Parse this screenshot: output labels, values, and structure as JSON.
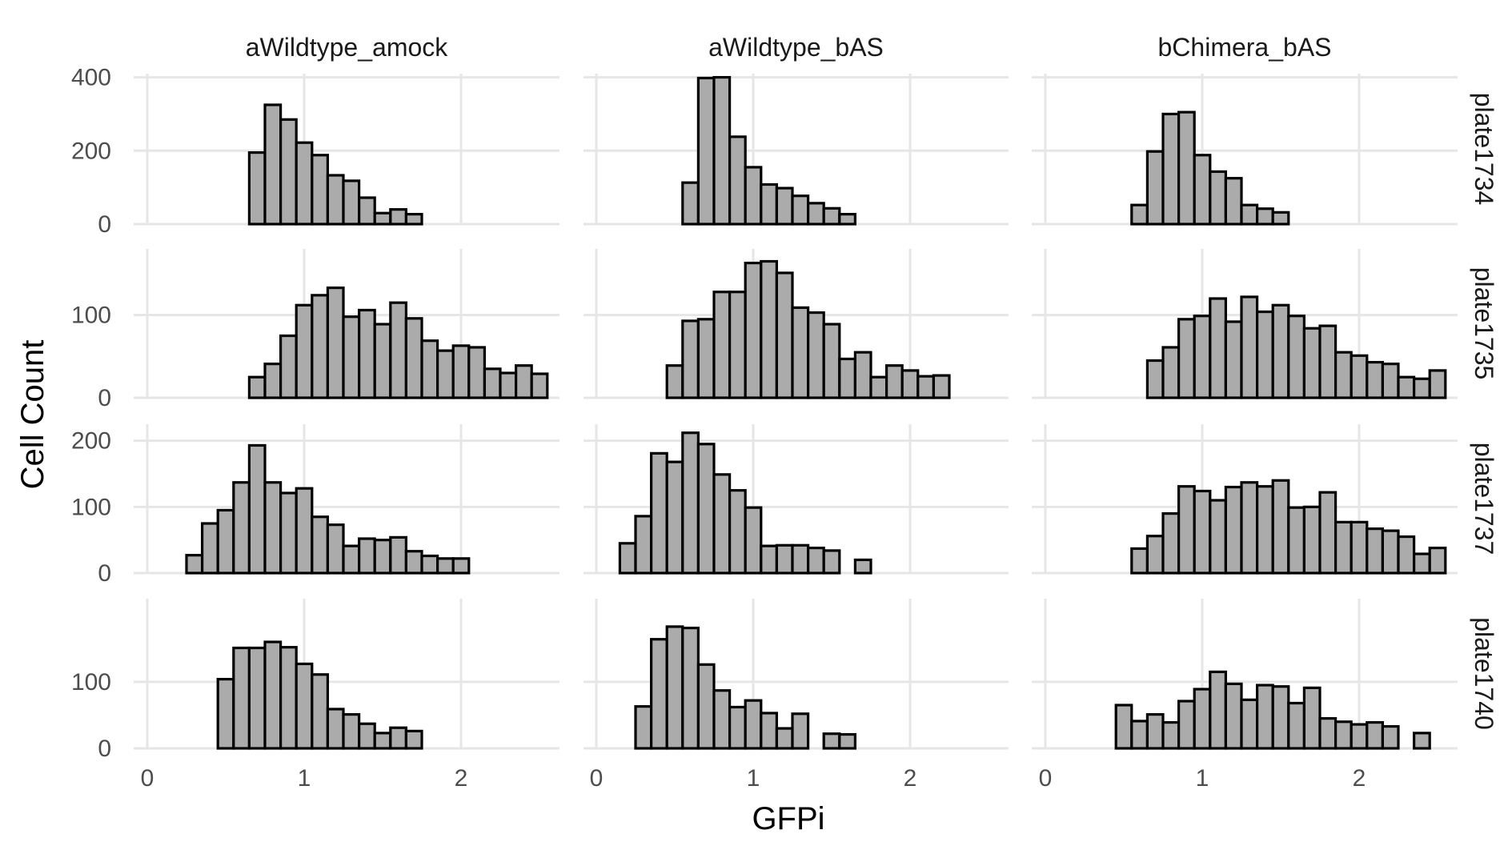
{
  "chart_data": {
    "type": "bar",
    "subtype": "faceted-histogram",
    "xlabel": "GFPi",
    "ylabel": "Cell Count",
    "bin_width": 0.1,
    "xlim": [
      -0.05,
      2.6
    ],
    "x_ticks": [
      0,
      1,
      2
    ],
    "grid": true,
    "facet_columns": [
      "aWildtype_amock",
      "aWildtype_bAS",
      "bChimera_bAS"
    ],
    "facet_rows": [
      {
        "label": "plate1734",
        "ylim": [
          0,
          410
        ],
        "y_ticks": [
          0,
          200,
          400
        ]
      },
      {
        "label": "plate1735",
        "ylim": [
          0,
          180
        ],
        "y_ticks": [
          0,
          100
        ]
      },
      {
        "label": "plate1737",
        "ylim": [
          0,
          225
        ],
        "y_ticks": [
          0,
          100,
          200
        ]
      },
      {
        "label": "plate1740",
        "ylim": [
          0,
          225
        ],
        "y_ticks": [
          0,
          100
        ]
      }
    ],
    "panels": [
      {
        "row": 0,
        "col": 0,
        "bins": [
          [
            0.7,
            195
          ],
          [
            0.8,
            325
          ],
          [
            0.9,
            285
          ],
          [
            1.0,
            222
          ],
          [
            1.1,
            188
          ],
          [
            1.2,
            133
          ],
          [
            1.3,
            118
          ],
          [
            1.4,
            72
          ],
          [
            1.5,
            30
          ],
          [
            1.6,
            40
          ],
          [
            1.7,
            27
          ]
        ]
      },
      {
        "row": 0,
        "col": 1,
        "bins": [
          [
            0.6,
            113
          ],
          [
            0.7,
            398
          ],
          [
            0.8,
            400
          ],
          [
            0.9,
            238
          ],
          [
            1.0,
            155
          ],
          [
            1.1,
            108
          ],
          [
            1.2,
            98
          ],
          [
            1.3,
            77
          ],
          [
            1.4,
            57
          ],
          [
            1.5,
            43
          ],
          [
            1.6,
            27
          ]
        ]
      },
      {
        "row": 0,
        "col": 2,
        "bins": [
          [
            0.6,
            52
          ],
          [
            0.7,
            198
          ],
          [
            0.8,
            300
          ],
          [
            0.9,
            305
          ],
          [
            1.0,
            188
          ],
          [
            1.1,
            143
          ],
          [
            1.2,
            125
          ],
          [
            1.3,
            52
          ],
          [
            1.4,
            42
          ],
          [
            1.5,
            32
          ]
        ]
      },
      {
        "row": 1,
        "col": 0,
        "bins": [
          [
            0.7,
            25
          ],
          [
            0.8,
            41
          ],
          [
            0.9,
            75
          ],
          [
            1.0,
            112
          ],
          [
            1.1,
            124
          ],
          [
            1.2,
            133
          ],
          [
            1.3,
            98
          ],
          [
            1.4,
            106
          ],
          [
            1.5,
            89
          ],
          [
            1.6,
            115
          ],
          [
            1.7,
            96
          ],
          [
            1.8,
            69
          ],
          [
            1.9,
            57
          ],
          [
            2.0,
            63
          ],
          [
            2.1,
            61
          ],
          [
            2.2,
            35
          ],
          [
            2.3,
            30
          ],
          [
            2.4,
            39
          ],
          [
            2.5,
            29
          ]
        ]
      },
      {
        "row": 1,
        "col": 1,
        "bins": [
          [
            0.5,
            39
          ],
          [
            0.6,
            93
          ],
          [
            0.7,
            95
          ],
          [
            0.8,
            128
          ],
          [
            0.9,
            128
          ],
          [
            1.0,
            163
          ],
          [
            1.1,
            165
          ],
          [
            1.2,
            151
          ],
          [
            1.3,
            109
          ],
          [
            1.4,
            103
          ],
          [
            1.5,
            89
          ],
          [
            1.6,
            47
          ],
          [
            1.7,
            55
          ],
          [
            1.8,
            25
          ],
          [
            1.9,
            39
          ],
          [
            2.0,
            33
          ],
          [
            2.1,
            26
          ],
          [
            2.2,
            27
          ]
        ]
      },
      {
        "row": 1,
        "col": 2,
        "bins": [
          [
            0.7,
            45
          ],
          [
            0.8,
            61
          ],
          [
            0.9,
            95
          ],
          [
            1.0,
            99
          ],
          [
            1.1,
            120
          ],
          [
            1.2,
            92
          ],
          [
            1.3,
            122
          ],
          [
            1.4,
            104
          ],
          [
            1.5,
            112
          ],
          [
            1.6,
            99
          ],
          [
            1.7,
            84
          ],
          [
            1.8,
            87
          ],
          [
            1.9,
            55
          ],
          [
            2.0,
            51
          ],
          [
            2.1,
            43
          ],
          [
            2.2,
            41
          ],
          [
            2.3,
            25
          ],
          [
            2.4,
            23
          ],
          [
            2.5,
            33
          ]
        ]
      },
      {
        "row": 2,
        "col": 0,
        "bins": [
          [
            0.3,
            27
          ],
          [
            0.4,
            75
          ],
          [
            0.5,
            95
          ],
          [
            0.6,
            137
          ],
          [
            0.7,
            193
          ],
          [
            0.8,
            137
          ],
          [
            0.9,
            121
          ],
          [
            1.0,
            128
          ],
          [
            1.1,
            85
          ],
          [
            1.2,
            73
          ],
          [
            1.3,
            41
          ],
          [
            1.4,
            52
          ],
          [
            1.5,
            50
          ],
          [
            1.6,
            54
          ],
          [
            1.7,
            33
          ],
          [
            1.8,
            26
          ],
          [
            1.9,
            22
          ],
          [
            2.0,
            22
          ]
        ]
      },
      {
        "row": 2,
        "col": 1,
        "bins": [
          [
            0.2,
            45
          ],
          [
            0.3,
            86
          ],
          [
            0.4,
            181
          ],
          [
            0.5,
            168
          ],
          [
            0.6,
            212
          ],
          [
            0.7,
            195
          ],
          [
            0.8,
            149
          ],
          [
            0.9,
            125
          ],
          [
            1.0,
            99
          ],
          [
            1.1,
            41
          ],
          [
            1.2,
            42
          ],
          [
            1.3,
            42
          ],
          [
            1.4,
            38
          ],
          [
            1.5,
            34
          ],
          [
            1.7,
            20
          ]
        ]
      },
      {
        "row": 2,
        "col": 2,
        "bins": [
          [
            0.6,
            37
          ],
          [
            0.7,
            56
          ],
          [
            0.8,
            90
          ],
          [
            0.9,
            131
          ],
          [
            1.0,
            124
          ],
          [
            1.1,
            110
          ],
          [
            1.2,
            130
          ],
          [
            1.3,
            137
          ],
          [
            1.4,
            131
          ],
          [
            1.5,
            140
          ],
          [
            1.6,
            99
          ],
          [
            1.7,
            100
          ],
          [
            1.8,
            122
          ],
          [
            1.9,
            77
          ],
          [
            2.0,
            77
          ],
          [
            2.1,
            67
          ],
          [
            2.2,
            64
          ],
          [
            2.3,
            55
          ],
          [
            2.4,
            29
          ],
          [
            2.5,
            38
          ]
        ]
      },
      {
        "row": 3,
        "col": 0,
        "bins": [
          [
            0.5,
            104
          ],
          [
            0.6,
            151
          ],
          [
            0.7,
            151
          ],
          [
            0.8,
            160
          ],
          [
            0.9,
            152
          ],
          [
            1.0,
            127
          ],
          [
            1.1,
            111
          ],
          [
            1.2,
            59
          ],
          [
            1.3,
            51
          ],
          [
            1.4,
            37
          ],
          [
            1.5,
            23
          ],
          [
            1.6,
            31
          ],
          [
            1.7,
            26
          ]
        ]
      },
      {
        "row": 3,
        "col": 1,
        "bins": [
          [
            0.3,
            63
          ],
          [
            0.4,
            164
          ],
          [
            0.5,
            183
          ],
          [
            0.6,
            181
          ],
          [
            0.7,
            126
          ],
          [
            0.8,
            87
          ],
          [
            0.9,
            62
          ],
          [
            1.0,
            72
          ],
          [
            1.1,
            53
          ],
          [
            1.2,
            30
          ],
          [
            1.3,
            52
          ],
          [
            1.5,
            22
          ],
          [
            1.6,
            21
          ]
        ]
      },
      {
        "row": 3,
        "col": 2,
        "bins": [
          [
            0.5,
            65
          ],
          [
            0.6,
            41
          ],
          [
            0.7,
            51
          ],
          [
            0.8,
            39
          ],
          [
            0.9,
            71
          ],
          [
            1.0,
            89
          ],
          [
            1.1,
            115
          ],
          [
            1.2,
            97
          ],
          [
            1.3,
            73
          ],
          [
            1.4,
            95
          ],
          [
            1.5,
            93
          ],
          [
            1.6,
            68
          ],
          [
            1.7,
            91
          ],
          [
            1.8,
            45
          ],
          [
            1.9,
            40
          ],
          [
            2.0,
            36
          ],
          [
            2.1,
            39
          ],
          [
            2.2,
            33
          ],
          [
            2.4,
            23
          ]
        ]
      }
    ]
  }
}
